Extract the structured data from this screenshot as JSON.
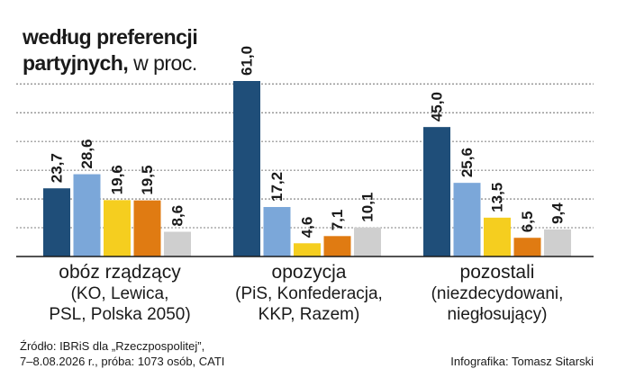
{
  "title": {
    "bold_line1": "według preferencji",
    "bold_line2": "partyjnych,",
    "unit": "w proc."
  },
  "groups": [
    {
      "label": "obóz rządzący",
      "sub1": "(KO, Lewica,",
      "sub2": "PSL, Polska 2050)"
    },
    {
      "label": "opozycja",
      "sub1": "(PiS, Konfederacja,",
      "sub2": "KKP, Razem)"
    },
    {
      "label": "pozostali",
      "sub1": "(niezdecydowani,",
      "sub2": "niegłosujący)"
    }
  ],
  "footer": {
    "source_line1": "Źródło: IBRiS dla „Rzeczpospolitej”,",
    "source_line2": "7–8.08.2026 r., próba: 1073 osób, CATI",
    "credit": "Infografika: Tomasz Sitarski"
  },
  "colors": {
    "series": [
      "#1f4e79",
      "#7ba7d9",
      "#f5ce1f",
      "#e07b12",
      "#cfcfcf"
    ],
    "grid": "#555555",
    "axis": "#1a1a1a"
  },
  "chart_data": {
    "type": "bar",
    "categories": [
      "obóz rządzący",
      "opozycja",
      "pozostali"
    ],
    "series": [
      {
        "values": [
          23.7,
          61.0,
          45.0
        ]
      },
      {
        "values": [
          28.6,
          17.2,
          25.6
        ]
      },
      {
        "values": [
          19.6,
          4.6,
          13.5
        ]
      },
      {
        "values": [
          19.5,
          7.1,
          6.5
        ]
      },
      {
        "values": [
          8.6,
          10.1,
          9.4
        ]
      }
    ],
    "value_labels": [
      [
        "23,7",
        "28,6",
        "19,6",
        "19,5",
        "8,6"
      ],
      [
        "61,0",
        "17,2",
        "4,6",
        "7,1",
        "10,1"
      ],
      [
        "45,0",
        "25,6",
        "13,5",
        "6,5",
        "9,4"
      ]
    ],
    "ylim": [
      0,
      61
    ],
    "grid": true
  }
}
